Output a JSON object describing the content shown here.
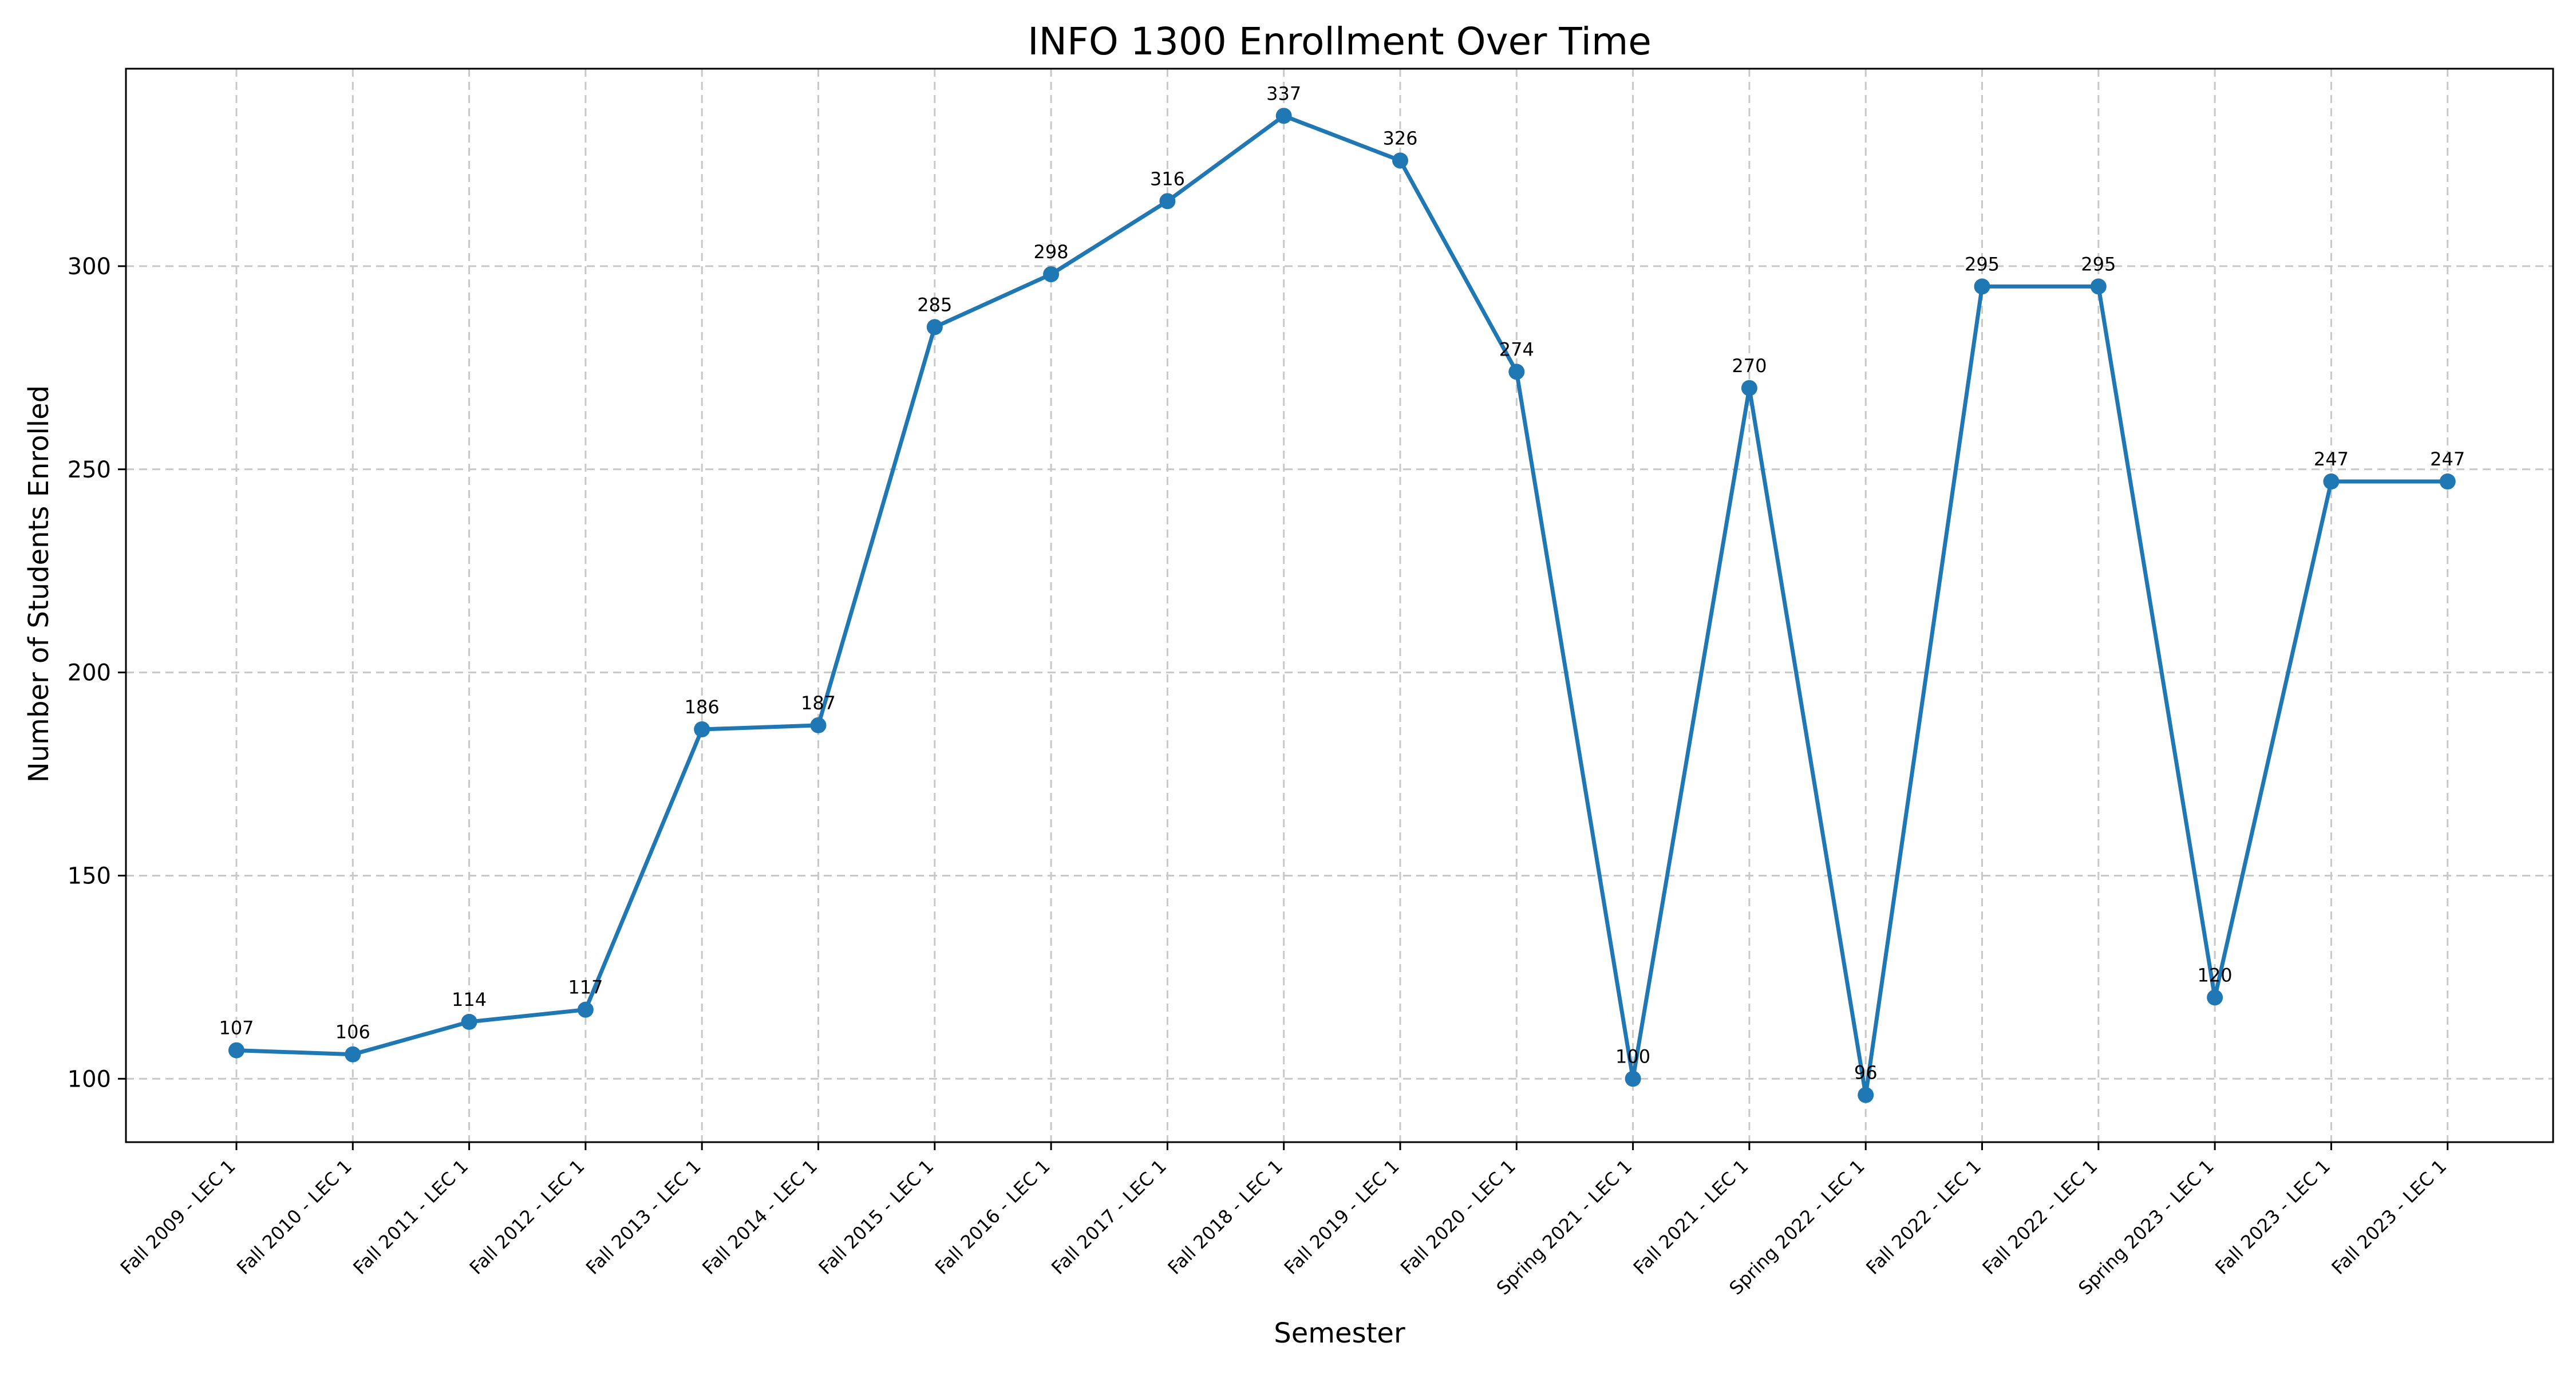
{
  "chart_data": {
    "type": "line",
    "title": "INFO  1300 Enrollment Over Time",
    "xlabel": "Semester",
    "ylabel": "Number of Students Enrolled",
    "categories": [
      "Fall  2009 - LEC 1",
      "Fall  2010 - LEC 1",
      "Fall  2011 - LEC 1",
      "Fall  2012 - LEC 1",
      "Fall  2013 - LEC 1",
      "Fall  2014 - LEC 1",
      "Fall  2015 - LEC 1",
      "Fall  2016 - LEC 1",
      "Fall  2017 - LEC 1",
      "Fall  2018 - LEC 1",
      "Fall  2019 - LEC 1",
      "Fall  2020 - LEC 1",
      "Spring  2021 - LEC 1",
      "Fall  2021 - LEC 1",
      "Spring  2022 - LEC 1",
      "Fall  2022 - LEC 1",
      "Fall  2022 - LEC 1",
      "Spring  2023 - LEC 1",
      "Fall  2023 - LEC 1",
      "Fall  2023 - LEC 1"
    ],
    "series": [
      {
        "values": [
          107,
          106,
          114,
          117,
          186,
          187,
          285,
          298,
          316,
          337,
          326,
          274,
          100,
          270,
          96,
          295,
          295,
          120,
          247,
          247
        ],
        "color": "#1f77b4",
        "marker": "circle"
      }
    ],
    "yticks": [
      100,
      150,
      200,
      250,
      300
    ],
    "ylim": [
      84.4,
      348.6
    ],
    "grid": true,
    "data_labels": true
  }
}
